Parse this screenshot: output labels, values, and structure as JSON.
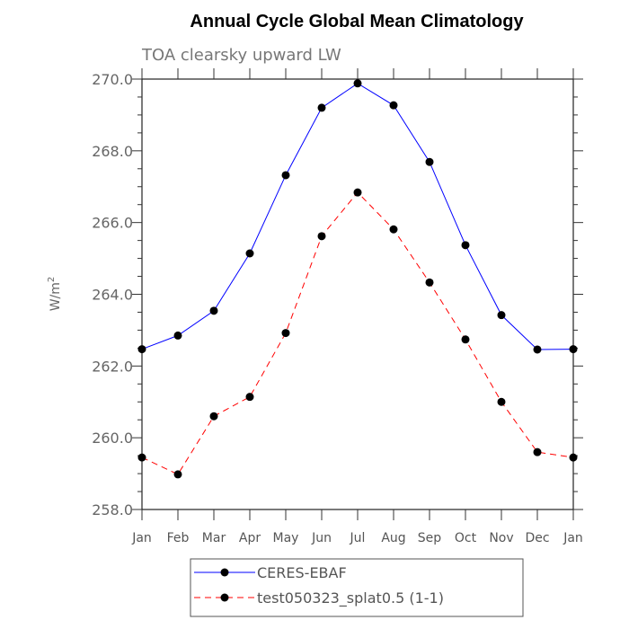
{
  "chart_data": {
    "type": "line",
    "title": "Annual Cycle Global Mean Climatology",
    "subtitle": "TOA clearsky upward LW",
    "xlabel": "",
    "ylabel": "W/m",
    "ylabel_superscript": "2",
    "categories": [
      "Jan",
      "Feb",
      "Mar",
      "Apr",
      "May",
      "Jun",
      "Jul",
      "Aug",
      "Sep",
      "Oct",
      "Nov",
      "Dec",
      "Jan"
    ],
    "ylim": [
      258.0,
      270.0
    ],
    "yticks": [
      "258.0",
      "260.0",
      "262.0",
      "264.0",
      "266.0",
      "268.0",
      "270.0"
    ],
    "grid": false,
    "legend_position": "bottom",
    "series": [
      {
        "name": "CERES-EBAF",
        "color": "#0000ff",
        "dash": "solid",
        "marker": "filled-circle",
        "values": [
          262.47,
          262.85,
          263.54,
          265.14,
          267.32,
          269.2,
          269.88,
          269.27,
          267.69,
          265.37,
          263.42,
          262.46,
          262.47
        ]
      },
      {
        "name": "test050323_splat0.5 (1-1)",
        "color": "#ff0000",
        "dash": "dashed",
        "marker": "filled-circle",
        "values": [
          259.45,
          258.98,
          260.6,
          261.14,
          262.92,
          265.62,
          266.84,
          265.81,
          264.33,
          262.74,
          261.0,
          259.6,
          259.45
        ]
      }
    ]
  }
}
